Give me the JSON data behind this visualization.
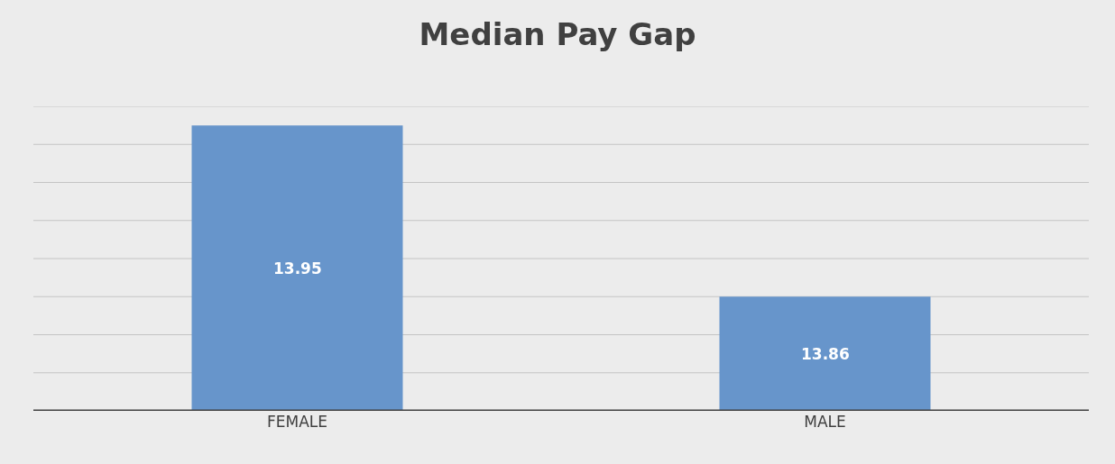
{
  "chart_data": {
    "type": "bar",
    "title": "Median Pay Gap",
    "categories": [
      "FEMALE",
      "MALE"
    ],
    "values": [
      13.95,
      13.86
    ],
    "color": "#6795cb",
    "data_labels": true,
    "ylim": [
      13.8,
      13.96
    ],
    "yticks": [
      {
        "value": 13.8,
        "label": null
      },
      {
        "value": 13.82,
        "label": null
      },
      {
        "value": 13.84,
        "label": null
      },
      {
        "value": 13.86,
        "label": null
      },
      {
        "value": 13.88,
        "label": null
      },
      {
        "value": 13.9,
        "label": null
      },
      {
        "value": 13.92,
        "label": null
      },
      {
        "value": 13.94,
        "label": null
      },
      {
        "value": 13.96,
        "label": null
      }
    ],
    "grid": "y",
    "tick_labels": "x"
  }
}
